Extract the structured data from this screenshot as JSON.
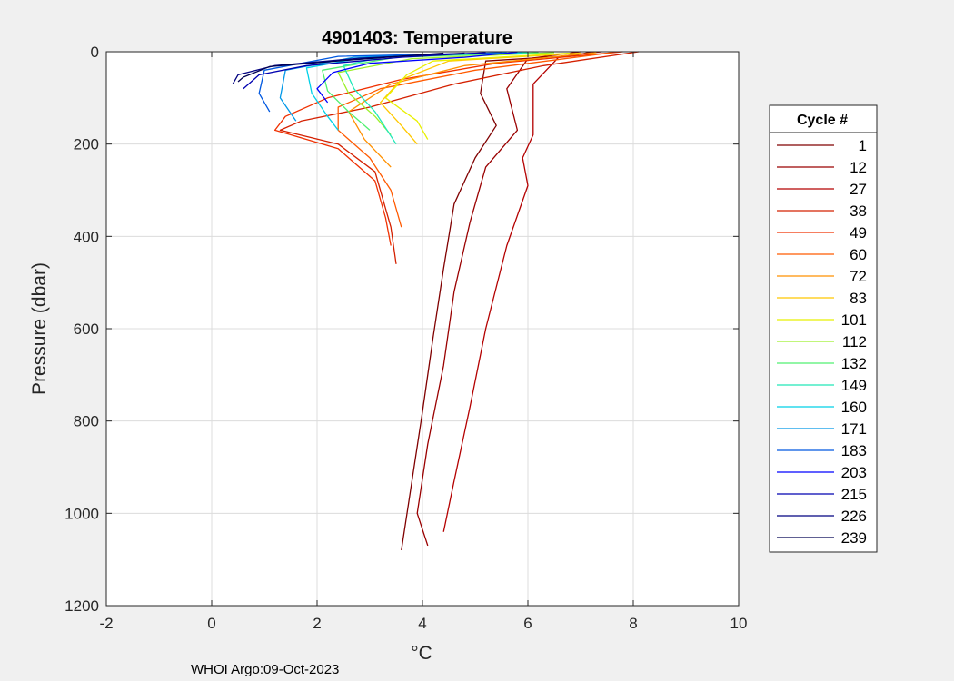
{
  "chart_data": {
    "type": "line",
    "title": "4901403:  Temperature",
    "xlabel": "°C",
    "ylabel": "Pressure (dbar)",
    "xlim": [
      -2,
      10
    ],
    "ylim": [
      0,
      1200
    ],
    "y_reversed": true,
    "grid": true,
    "xticks": [
      -2,
      0,
      2,
      4,
      6,
      8,
      10
    ],
    "yticks": [
      0,
      200,
      400,
      600,
      800,
      1000,
      1200
    ],
    "legend": {
      "title": "Cycle #",
      "placement": "outside-right",
      "entries": [
        {
          "label": "1",
          "color": "#800000"
        },
        {
          "label": "12",
          "color": "#9a0000"
        },
        {
          "label": "27",
          "color": "#b40000"
        },
        {
          "label": "38",
          "color": "#d42000"
        },
        {
          "label": "49",
          "color": "#f03000"
        },
        {
          "label": "60",
          "color": "#ff5a00"
        },
        {
          "label": "72",
          "color": "#ff9000"
        },
        {
          "label": "83",
          "color": "#ffc800"
        },
        {
          "label": "101",
          "color": "#e8f000"
        },
        {
          "label": "112",
          "color": "#9cf02a"
        },
        {
          "label": "132",
          "color": "#50f070"
        },
        {
          "label": "149",
          "color": "#20e8b8"
        },
        {
          "label": "160",
          "color": "#00d0e8"
        },
        {
          "label": "171",
          "color": "#0098e8"
        },
        {
          "label": "183",
          "color": "#0058e0"
        },
        {
          "label": "203",
          "color": "#0000ff"
        },
        {
          "label": "215",
          "color": "#0000b0"
        },
        {
          "label": "226",
          "color": "#000080"
        },
        {
          "label": "239",
          "color": "#000050"
        }
      ]
    },
    "series": [
      {
        "label": "1",
        "color": "#800000",
        "points": [
          [
            7.2,
            0
          ],
          [
            6.9,
            8
          ],
          [
            5.2,
            20
          ],
          [
            5.1,
            90
          ],
          [
            5.4,
            160
          ],
          [
            5.0,
            230
          ],
          [
            4.6,
            330
          ],
          [
            4.4,
            470
          ],
          [
            4.2,
            620
          ],
          [
            4.0,
            780
          ],
          [
            3.8,
            930
          ],
          [
            3.6,
            1080
          ]
        ]
      },
      {
        "label": "12",
        "color": "#9a0000",
        "points": [
          [
            7.0,
            0
          ],
          [
            6.0,
            15
          ],
          [
            5.6,
            80
          ],
          [
            5.8,
            170
          ],
          [
            5.2,
            250
          ],
          [
            4.9,
            370
          ],
          [
            4.6,
            520
          ],
          [
            4.4,
            680
          ],
          [
            4.1,
            850
          ],
          [
            3.9,
            1000
          ],
          [
            4.1,
            1070
          ]
        ]
      },
      {
        "label": "27",
        "color": "#b40000",
        "points": [
          [
            7.4,
            0
          ],
          [
            6.6,
            10
          ],
          [
            6.1,
            70
          ],
          [
            6.1,
            180
          ],
          [
            5.9,
            230
          ],
          [
            6.0,
            290
          ],
          [
            5.6,
            420
          ],
          [
            5.2,
            600
          ],
          [
            4.9,
            770
          ],
          [
            4.6,
            930
          ],
          [
            4.4,
            1040
          ]
        ]
      },
      {
        "label": "38",
        "color": "#d42000",
        "points": [
          [
            8.1,
            0
          ],
          [
            6.3,
            30
          ],
          [
            4.6,
            70
          ],
          [
            3.0,
            120
          ],
          [
            1.7,
            150
          ],
          [
            1.3,
            170
          ],
          [
            2.4,
            200
          ],
          [
            3.1,
            260
          ],
          [
            3.4,
            380
          ],
          [
            3.5,
            460
          ]
        ]
      },
      {
        "label": "49",
        "color": "#f03000",
        "points": [
          [
            7.8,
            0
          ],
          [
            5.4,
            25
          ],
          [
            3.6,
            60
          ],
          [
            2.2,
            100
          ],
          [
            1.4,
            140
          ],
          [
            1.2,
            170
          ],
          [
            2.4,
            210
          ],
          [
            3.1,
            280
          ],
          [
            3.3,
            360
          ],
          [
            3.4,
            420
          ]
        ]
      },
      {
        "label": "60",
        "color": "#ff5a00",
        "points": [
          [
            7.6,
            2
          ],
          [
            5.0,
            40
          ],
          [
            3.2,
            80
          ],
          [
            2.4,
            120
          ],
          [
            2.4,
            170
          ],
          [
            3.0,
            230
          ],
          [
            3.4,
            300
          ],
          [
            3.6,
            380
          ]
        ]
      },
      {
        "label": "72",
        "color": "#ff9000",
        "points": [
          [
            7.3,
            2
          ],
          [
            4.8,
            30
          ],
          [
            3.4,
            70
          ],
          [
            2.6,
            130
          ],
          [
            2.9,
            190
          ],
          [
            3.4,
            250
          ]
        ]
      },
      {
        "label": "83",
        "color": "#ffc800",
        "points": [
          [
            7.0,
            3
          ],
          [
            4.5,
            20
          ],
          [
            3.6,
            60
          ],
          [
            3.2,
            110
          ],
          [
            3.6,
            160
          ],
          [
            3.9,
            200
          ]
        ]
      },
      {
        "label": "101",
        "color": "#e8f000",
        "points": [
          [
            6.8,
            3
          ],
          [
            4.2,
            20
          ],
          [
            3.7,
            50
          ],
          [
            3.3,
            100
          ],
          [
            3.9,
            150
          ],
          [
            4.1,
            190
          ]
        ]
      },
      {
        "label": "112",
        "color": "#9cf02a",
        "points": [
          [
            6.5,
            2
          ],
          [
            3.8,
            15
          ],
          [
            2.4,
            45
          ],
          [
            2.6,
            90
          ],
          [
            3.1,
            140
          ],
          [
            3.4,
            180
          ]
        ]
      },
      {
        "label": "132",
        "color": "#50f070",
        "points": [
          [
            6.2,
            2
          ],
          [
            3.5,
            12
          ],
          [
            2.1,
            40
          ],
          [
            2.2,
            85
          ],
          [
            2.6,
            130
          ],
          [
            3.0,
            170
          ]
        ]
      },
      {
        "label": "149",
        "color": "#20e8b8",
        "points": [
          [
            6.0,
            2
          ],
          [
            3.3,
            10
          ],
          [
            2.5,
            30
          ],
          [
            2.7,
            80
          ],
          [
            3.1,
            130
          ],
          [
            3.5,
            200
          ]
        ]
      },
      {
        "label": "160",
        "color": "#00d0e8",
        "points": [
          [
            5.9,
            2
          ],
          [
            3.0,
            10
          ],
          [
            1.8,
            35
          ],
          [
            1.9,
            90
          ],
          [
            2.2,
            140
          ],
          [
            2.4,
            170
          ]
        ]
      },
      {
        "label": "171",
        "color": "#0098e8",
        "points": [
          [
            5.6,
            2
          ],
          [
            2.7,
            12
          ],
          [
            1.4,
            40
          ],
          [
            1.3,
            100
          ],
          [
            1.6,
            150
          ]
        ]
      },
      {
        "label": "183",
        "color": "#0058e0",
        "points": [
          [
            5.5,
            2
          ],
          [
            2.4,
            10
          ],
          [
            1.0,
            40
          ],
          [
            0.9,
            90
          ],
          [
            1.1,
            130
          ]
        ]
      },
      {
        "label": "203",
        "color": "#0000ff",
        "points": [
          [
            5.8,
            1
          ],
          [
            4.8,
            12
          ],
          [
            3.0,
            25
          ],
          [
            2.3,
            45
          ],
          [
            2.0,
            80
          ],
          [
            2.2,
            110
          ]
        ]
      },
      {
        "label": "215",
        "color": "#0000b0",
        "points": [
          [
            5.2,
            2
          ],
          [
            3.6,
            12
          ],
          [
            1.8,
            30
          ],
          [
            0.9,
            50
          ],
          [
            0.6,
            80
          ]
        ]
      },
      {
        "label": "226",
        "color": "#000080",
        "points": [
          [
            4.8,
            3
          ],
          [
            2.8,
            14
          ],
          [
            1.2,
            30
          ],
          [
            0.5,
            50
          ],
          [
            0.4,
            70
          ]
        ]
      },
      {
        "label": "239",
        "color": "#000050",
        "points": [
          [
            4.4,
            3
          ],
          [
            2.6,
            18
          ],
          [
            1.1,
            32
          ],
          [
            0.6,
            55
          ],
          [
            0.5,
            65
          ]
        ]
      }
    ]
  },
  "footer": {
    "text": "WHOI Argo:09-Oct-2023"
  }
}
